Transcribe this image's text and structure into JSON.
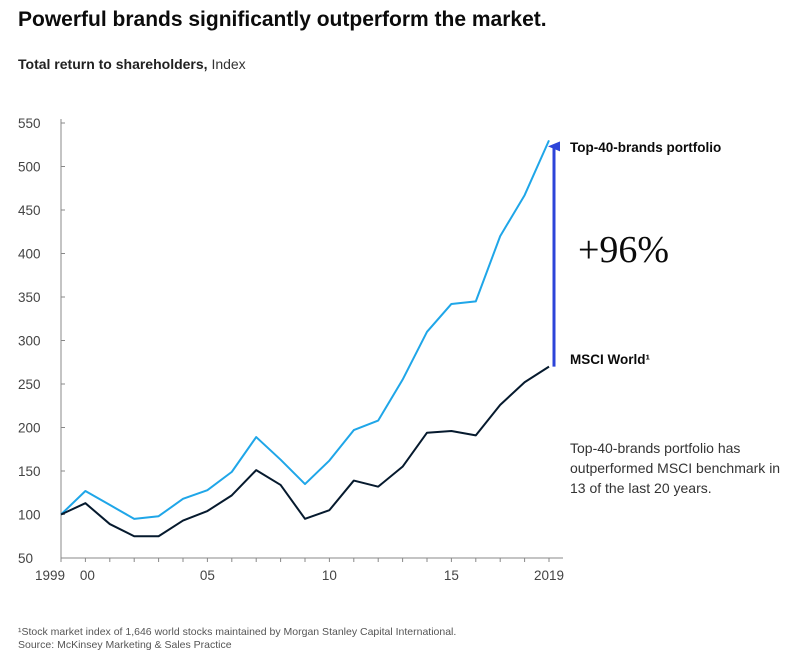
{
  "header": {
    "title": "Powerful brands significantly outperform the market.",
    "subtitle_bold": "Total return to shareholders,",
    "subtitle_rest": "Index"
  },
  "chart_data": {
    "type": "line",
    "x": [
      1999,
      2000,
      2001,
      2002,
      2003,
      2004,
      2005,
      2006,
      2007,
      2008,
      2009,
      2010,
      2011,
      2012,
      2013,
      2014,
      2015,
      2016,
      2017,
      2018,
      2019
    ],
    "x_tick_labels": [
      {
        "x": 1999,
        "label": "1999"
      },
      {
        "x": 2000,
        "label": "00"
      },
      {
        "x": 2005,
        "label": "05"
      },
      {
        "x": 2010,
        "label": "10"
      },
      {
        "x": 2015,
        "label": "15"
      },
      {
        "x": 2019,
        "label": "2019"
      }
    ],
    "yticks": [
      50,
      100,
      150,
      200,
      250,
      300,
      350,
      400,
      450,
      500,
      550
    ],
    "ylim": [
      50,
      550
    ],
    "xlim": [
      1999,
      2019
    ],
    "series": [
      {
        "name": "Top-40-brands portfolio",
        "color": "#1fa6e8",
        "values": [
          100,
          127,
          111,
          95,
          98,
          118,
          128,
          149,
          189,
          163,
          135,
          162,
          197,
          208,
          255,
          310,
          342,
          345,
          420,
          467,
          530
        ]
      },
      {
        "name": "MSCI World¹",
        "color": "#061a2e",
        "values": [
          100,
          113,
          89,
          75,
          75,
          93,
          104,
          122,
          151,
          134,
          95,
          105,
          139,
          132,
          155,
          194,
          196,
          191,
          226,
          252,
          270
        ]
      }
    ],
    "annotation": {
      "text": "+96%",
      "arrow_from": 270,
      "arrow_to": 530,
      "arrow_x": 2019,
      "color": "#2d44d9"
    },
    "note": "Top-40-brands portfolio has outperformed MSCI benchmark in 13 of the last 20 years.",
    "grid": false,
    "legend": "direct labels at right"
  },
  "footnotes": {
    "line1": "¹Stock market index of 1,646 world stocks maintained by Morgan Stanley Capital International.",
    "line2": "Source: McKinsey Marketing & Sales Practice"
  }
}
